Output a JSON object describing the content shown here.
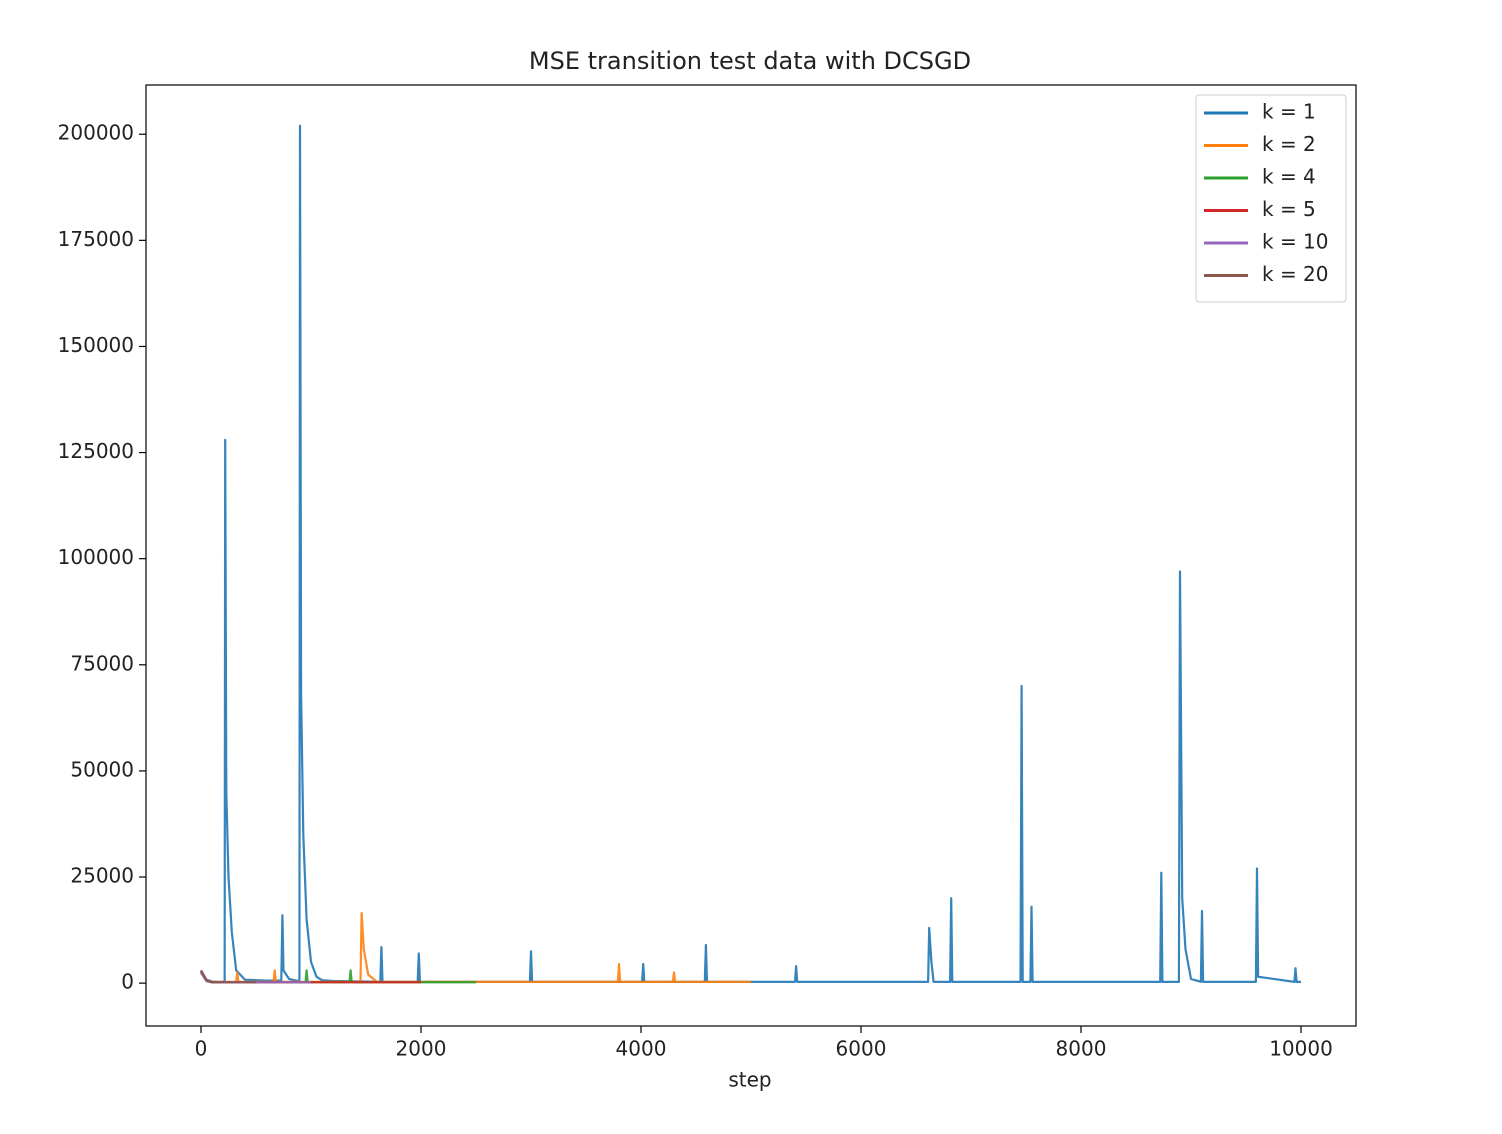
{
  "chart_data": {
    "type": "line",
    "title": "MSE transition test data with DCSGD",
    "xlabel": "step",
    "xlim": [
      -500,
      10500
    ],
    "ylim": [
      -10100,
      211600
    ],
    "xticks": [
      0,
      2000,
      4000,
      6000,
      8000,
      10000
    ],
    "yticks": [
      0,
      25000,
      50000,
      75000,
      100000,
      125000,
      150000,
      175000,
      200000
    ],
    "grid": false,
    "legend": "upper-right",
    "series": [
      {
        "name": "k = 1",
        "color": "#1f77b4",
        "x": [
          0,
          50,
          100,
          150,
          200,
          215,
          220,
          230,
          250,
          280,
          320,
          400,
          600,
          730,
          740,
          750,
          800,
          880,
          895,
          900,
          910,
          930,
          960,
          1000,
          1050,
          1100,
          1200,
          1630,
          1640,
          1650,
          1970,
          1980,
          1990,
          2500,
          2990,
          3000,
          3010,
          4010,
          4020,
          4030,
          4580,
          4590,
          4600,
          5200,
          5400,
          5410,
          5420,
          6610,
          6620,
          6640,
          6660,
          6810,
          6820,
          6830,
          7450,
          7460,
          7470,
          7540,
          7550,
          7560,
          8720,
          8730,
          8740,
          8890,
          8900,
          8920,
          8950,
          9000,
          9090,
          9100,
          9110,
          9590,
          9600,
          9610,
          9940,
          9950,
          9960,
          10000
        ],
        "values": [
          3000,
          800,
          400,
          300,
          300,
          500,
          128000,
          45000,
          25000,
          12000,
          3000,
          800,
          600,
          600,
          16000,
          3000,
          1000,
          500,
          800,
          202000,
          68000,
          35000,
          15000,
          5000,
          1500,
          700,
          500,
          300,
          8500,
          300,
          300,
          7000,
          300,
          300,
          300,
          7500,
          300,
          300,
          4500,
          300,
          300,
          9000,
          300,
          300,
          300,
          4000,
          300,
          300,
          13000,
          5000,
          300,
          300,
          20000,
          300,
          300,
          70000,
          300,
          300,
          18000,
          300,
          300,
          26000,
          300,
          300,
          97000,
          20000,
          8000,
          1000,
          300,
          17000,
          300,
          300,
          27000,
          1500,
          300,
          3500,
          300,
          300
        ]
      },
      {
        "name": "k = 2",
        "color": "#ff7f0e",
        "x": [
          0,
          50,
          100,
          320,
          330,
          340,
          660,
          670,
          680,
          1450,
          1460,
          1480,
          1520,
          1600,
          2000,
          3000,
          3790,
          3800,
          3810,
          4290,
          4300,
          4310,
          5000
        ],
        "values": [
          2500,
          600,
          300,
          300,
          2500,
          300,
          300,
          3000,
          300,
          300,
          16500,
          8000,
          2000,
          300,
          300,
          300,
          300,
          4500,
          300,
          300,
          2500,
          300,
          300
        ]
      },
      {
        "name": "k = 4",
        "color": "#2ca02c",
        "x": [
          0,
          50,
          100,
          950,
          960,
          970,
          1350,
          1360,
          1370,
          2500
        ],
        "values": [
          2500,
          500,
          200,
          200,
          3000,
          200,
          200,
          3000,
          200,
          200
        ]
      },
      {
        "name": "k = 5",
        "color": "#d62728",
        "x": [
          0,
          50,
          100,
          1000,
          2000
        ],
        "values": [
          2800,
          600,
          200,
          200,
          200
        ]
      },
      {
        "name": "k = 10",
        "color": "#9467bd",
        "x": [
          0,
          50,
          100,
          1000
        ],
        "values": [
          2600,
          500,
          200,
          200
        ]
      },
      {
        "name": "k = 20",
        "color": "#8c564b",
        "x": [
          0,
          50,
          100,
          500
        ],
        "values": [
          3000,
          600,
          200,
          200
        ]
      }
    ]
  }
}
